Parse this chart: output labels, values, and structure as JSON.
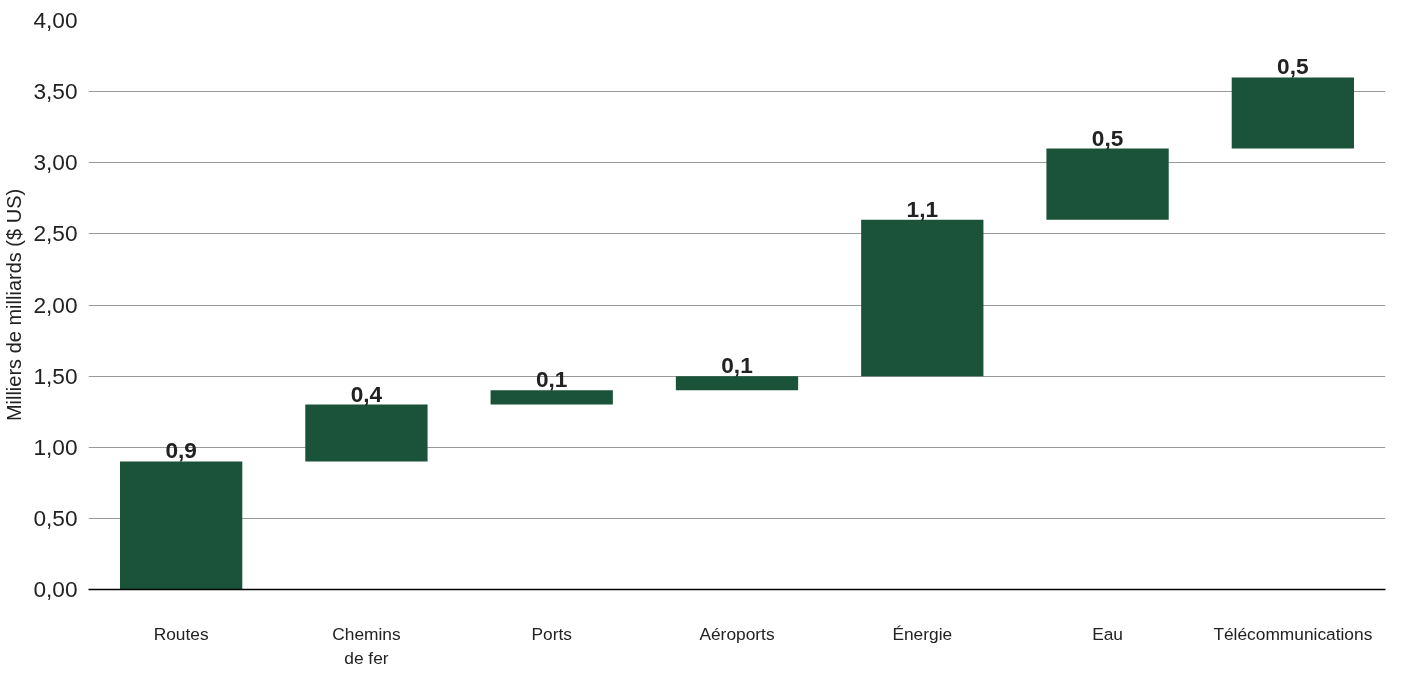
{
  "chart_data": {
    "type": "bar",
    "ylabel": "Milliers de milliards ($ US)",
    "categories": [
      "Routes",
      "Chemins de fer",
      "Ports",
      "Aéroports",
      "Énergie",
      "Eau",
      "Télécommunications"
    ],
    "values": [
      0.9,
      0.4,
      0.1,
      0.1,
      1.1,
      0.5,
      0.5
    ],
    "base": [
      0,
      0.9,
      1.3,
      1.4,
      1.5,
      2.6,
      3.1
    ],
    "value_labels": [
      "0,9",
      "0,4",
      "0,1",
      "0,1",
      "1,1",
      "0,5",
      "0,5"
    ],
    "color": "#1a5339",
    "ylim": [
      0,
      4
    ],
    "yticks": [
      {
        "value": 0,
        "label": "0,00"
      },
      {
        "value": 0.5,
        "label": "0,50"
      },
      {
        "value": 1,
        "label": "1,00"
      },
      {
        "value": 1.5,
        "label": "1,50"
      },
      {
        "value": 2,
        "label": "2,00"
      },
      {
        "value": 2.5,
        "label": "2,50"
      },
      {
        "value": 3,
        "label": "3,00"
      },
      {
        "value": 3.5,
        "label": "3,50"
      },
      {
        "value": 4,
        "label": "4,00"
      }
    ],
    "grid": "y"
  }
}
